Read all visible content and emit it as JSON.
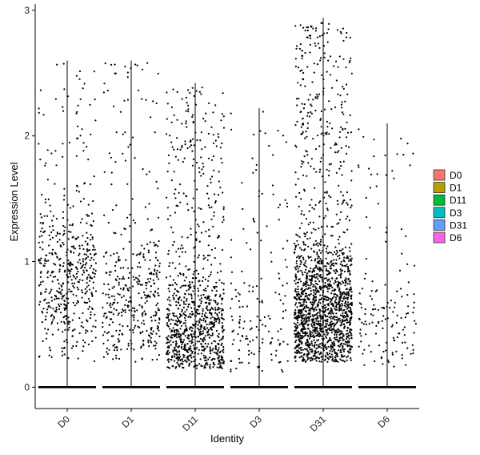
{
  "chart_data": {
    "type": "violin",
    "title": "",
    "xlabel": "Identity",
    "ylabel": "Expression Level",
    "categories": [
      "D0",
      "D1",
      "D11",
      "D3",
      "D31",
      "D6"
    ],
    "ylim": [
      -0.17,
      3.05
    ],
    "yticks": [
      "0",
      "1",
      "2",
      "3"
    ],
    "legend": {
      "position": "right",
      "items": [
        {
          "label": "D0",
          "color": "#F8766D"
        },
        {
          "label": "D1",
          "color": "#B79F00"
        },
        {
          "label": "D11",
          "color": "#00BA38"
        },
        {
          "label": "D3",
          "color": "#00BFC4"
        },
        {
          "label": "D31",
          "color": "#619CFF"
        },
        {
          "label": "D6",
          "color": "#F564E3"
        }
      ]
    },
    "grid": false,
    "series": [
      {
        "category": "D0",
        "violin_max": 2.6,
        "points_n": 520,
        "points_min": 0.2,
        "points_max": 2.6,
        "density_mode": 0.9
      },
      {
        "category": "D1",
        "violin_max": 2.6,
        "points_n": 400,
        "points_min": 0.2,
        "points_max": 2.6,
        "density_mode": 0.7
      },
      {
        "category": "D11",
        "violin_max": 2.42,
        "points_n": 950,
        "points_min": 0.15,
        "points_max": 2.4,
        "density_mode": 0.35
      },
      {
        "category": "D3",
        "violin_max": 2.22,
        "points_n": 160,
        "points_min": 0.12,
        "points_max": 2.2,
        "density_mode": 0.3
      },
      {
        "category": "D31",
        "violin_max": 2.94,
        "points_n": 1700,
        "points_min": 0.2,
        "points_max": 2.9,
        "density_mode": 0.55
      },
      {
        "category": "D6",
        "violin_max": 2.1,
        "points_n": 150,
        "points_min": 0.15,
        "points_max": 2.1,
        "density_mode": 0.4
      }
    ]
  }
}
